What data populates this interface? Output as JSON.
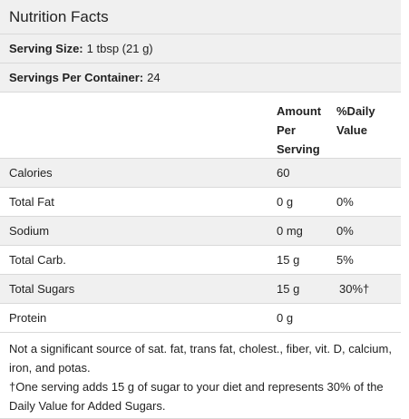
{
  "title": "Nutrition Facts",
  "serving_size": {
    "label": "Serving Size:",
    "value": "1 tbsp (21 g)"
  },
  "servings_per_container": {
    "label": "Servings Per Container:",
    "value": "24"
  },
  "table_header": {
    "amount_per_serving": "Amount Per Serving",
    "daily_value": "%Daily Value"
  },
  "rows": [
    {
      "name": "Calories",
      "amount": "60",
      "dv": ""
    },
    {
      "name": "Total Fat",
      "amount": "0 g",
      "dv": "0%"
    },
    {
      "name": "Sodium",
      "amount": "0 mg",
      "dv": "0%"
    },
    {
      "name": "Total Carb.",
      "amount": "15 g",
      "dv": "5%"
    },
    {
      "name": "Total Sugars",
      "amount": "15 g",
      "dv": "30%†"
    },
    {
      "name": "Protein",
      "amount": "0 g",
      "dv": ""
    }
  ],
  "footnotes": [
    "Not a significant source of sat. fat, trans fat, cholest., fiber, vit. D, calcium, iron, and potas.",
    "†One serving adds 15 g of sugar to your diet and represents 30% of the Daily Value for Added Sugars."
  ]
}
